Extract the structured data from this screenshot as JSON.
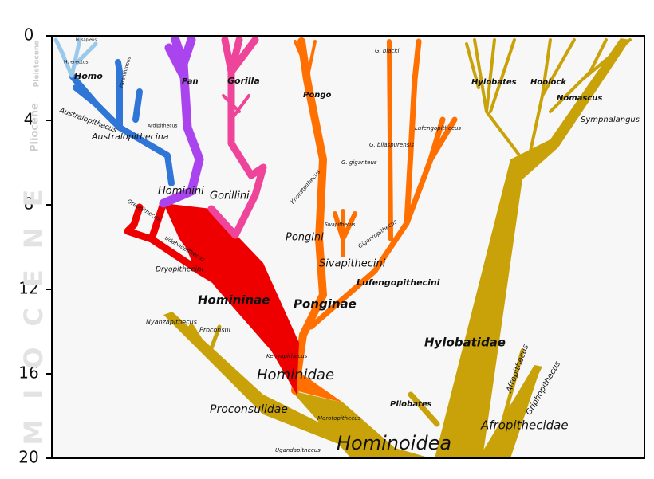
{
  "axis": {
    "ticks": [
      0,
      4,
      8,
      12,
      16,
      20
    ],
    "lim": [
      0,
      20
    ]
  },
  "epochs": [
    "Pleistocene",
    "Pliocene",
    "MIOCENE"
  ],
  "labels": [
    "H. sapiens",
    "H. erectus",
    "Homo",
    "Australopithecus",
    "Paranthropus",
    "Ardipithecus",
    "Australopithecina",
    "Pan",
    "Gorilla",
    "Hominini",
    "Gorillini",
    "Oreopithecus",
    "Udabnopithecus",
    "Dryopithecini",
    "Homininae",
    "Pongo",
    "G. blacki",
    "Lufengopithecus",
    "G. bilaspurensis",
    "G. giganteus",
    "Khoratpithecus",
    "Sivapithecus",
    "Gigantopithecus",
    "Pongini",
    "Sivapithecini",
    "Lufengopithecini",
    "Ponginae",
    "Nyanzapithecus",
    "Proconsul",
    "Kenyapithecus",
    "Hominidae",
    "Proconsulidae",
    "Morotopithecus",
    "Ugandapithecus",
    "Hominoidea",
    "Hylobates",
    "Hoolock",
    "Nomascus",
    "Symphalangus",
    "Hylobatidae",
    "Pliobates",
    "Afropithecus",
    "Griphopithecus",
    "Afropithecidae"
  ]
}
